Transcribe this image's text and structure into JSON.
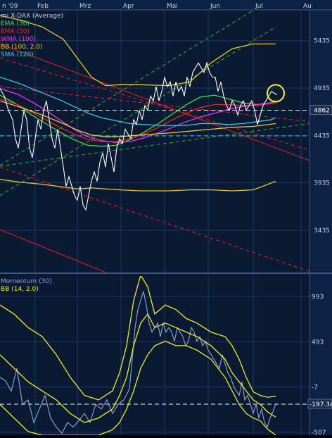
{
  "colors": {
    "background": "#0a1a33",
    "grid": "#1f3866",
    "axis_panel": "#0d2244",
    "text": "#c8d2e6",
    "price": "#ffffff",
    "ema30": "#44dd44",
    "ema50": "#ee2222",
    "wma100": "#ee33ee",
    "bb": "#e6c830",
    "sma120": "#33c8e6",
    "trend_green": "#22bb22",
    "trend_red": "#dd2222",
    "momentum": "#8ea6e0",
    "mom_bb": "#eeee22",
    "ref_line": "#ffffff",
    "circle": "#ffee33"
  },
  "chart_data": [
    {
      "type": "line",
      "title": "mi X-DAX (Average)",
      "x_labels": [
        "n '09",
        "Feb",
        "Mrz",
        "Apr",
        "Mai",
        "Jun",
        "Jul",
        "Au"
      ],
      "y_ticks": [
        5435,
        4935,
        4435,
        3935,
        3435
      ],
      "ylim": [
        3010,
        5760
      ],
      "last_value_label": "4862",
      "reference_level": 4700,
      "series": [
        {
          "name": "EMA (30)",
          "color_key": "ema30",
          "x": [
            0,
            25,
            45,
            65,
            85,
            105,
            125,
            145,
            165,
            185,
            205,
            225,
            245,
            265,
            285,
            305,
            325,
            345,
            365,
            385,
            392
          ],
          "y": [
            4860,
            4760,
            4650,
            4560,
            4470,
            4390,
            4330,
            4320,
            4330,
            4390,
            4470,
            4560,
            4660,
            4760,
            4840,
            4860,
            4820,
            4780,
            4760,
            4780,
            4800
          ]
        },
        {
          "name": "EMA (50)",
          "color_key": "ema50",
          "x": [
            0,
            25,
            45,
            65,
            85,
            105,
            125,
            145,
            165,
            185,
            205,
            225,
            245,
            265,
            285,
            305,
            325,
            345,
            365,
            385,
            392
          ],
          "y": [
            4820,
            4760,
            4680,
            4600,
            4520,
            4450,
            4390,
            4370,
            4370,
            4400,
            4450,
            4520,
            4600,
            4670,
            4730,
            4760,
            4760,
            4750,
            4750,
            4770,
            4780
          ]
        },
        {
          "name": "WMA (100)",
          "color_key": "wma100",
          "x": [
            0,
            25,
            45,
            65,
            85,
            105,
            125,
            145,
            165,
            185,
            205,
            225,
            245,
            265,
            285,
            305,
            325,
            345,
            365,
            385,
            392
          ],
          "y": [
            4930,
            4870,
            4790,
            4700,
            4600,
            4500,
            4420,
            4380,
            4360,
            4370,
            4410,
            4460,
            4520,
            4580,
            4630,
            4670,
            4710,
            4740,
            4760,
            4780,
            4790
          ]
        },
        {
          "name": "BB (100, 2.0)",
          "color_key": "bb",
          "band": true,
          "x": [
            0,
            30,
            60,
            90,
            110,
            130,
            150,
            170,
            200,
            240,
            270,
            300,
            330,
            360,
            392
          ],
          "upper": [
            5700,
            5650,
            5580,
            5450,
            5250,
            5050,
            4960,
            4970,
            4970,
            4960,
            5000,
            5200,
            5350,
            5400,
            5400
          ],
          "middle": [
            4800,
            4730,
            4650,
            4560,
            4490,
            4440,
            4420,
            4420,
            4440,
            4460,
            4480,
            4500,
            4520,
            4530,
            4560
          ],
          "lower": [
            3970,
            3940,
            3920,
            3890,
            3870,
            3880,
            3870,
            3860,
            3850,
            3850,
            3860,
            3860,
            3850,
            3860,
            3950
          ]
        },
        {
          "name": "SMA (120)",
          "color_key": "sma120",
          "x": [
            0,
            25,
            45,
            65,
            85,
            105,
            125,
            145,
            165,
            185,
            205,
            225,
            245,
            265,
            285,
            305,
            325,
            345,
            365,
            385,
            392
          ],
          "y": [
            5050,
            4990,
            4930,
            4870,
            4810,
            4740,
            4670,
            4620,
            4590,
            4560,
            4550,
            4540,
            4540,
            4540,
            4560,
            4560,
            4550,
            4560,
            4580,
            4600,
            4620
          ]
        },
        {
          "name": "X-DAX",
          "color_key": "price",
          "x": [
            0,
            6,
            12,
            18,
            22,
            26,
            30,
            34,
            38,
            42,
            46,
            50,
            54,
            58,
            62,
            66,
            70,
            74,
            78,
            82,
            86,
            90,
            94,
            98,
            102,
            106,
            110,
            114,
            118,
            122,
            126,
            130,
            134,
            138,
            142,
            146,
            150,
            154,
            158,
            162,
            166,
            170,
            174,
            178,
            182,
            186,
            190,
            194,
            198,
            202,
            206,
            210,
            214,
            218,
            222,
            226,
            230,
            234,
            238,
            242,
            246,
            250,
            254,
            258,
            262,
            266,
            270,
            274,
            278,
            282,
            286,
            290,
            294,
            298,
            302,
            306,
            310,
            314,
            318,
            322,
            326,
            330,
            334,
            338,
            342,
            346,
            350,
            354,
            358,
            362,
            366,
            370,
            374,
            378,
            382,
            386,
            390,
            394
          ],
          "y": [
            4930,
            4850,
            4700,
            4600,
            4400,
            4300,
            4500,
            4700,
            4600,
            4300,
            4200,
            4400,
            4600,
            4500,
            4700,
            4800,
            4600,
            4400,
            4300,
            4500,
            4300,
            4100,
            3900,
            4000,
            3900,
            3800,
            3750,
            3900,
            3700,
            3650,
            3800,
            3950,
            4050,
            3950,
            4150,
            4250,
            4100,
            4350,
            4200,
            4050,
            4300,
            4400,
            4350,
            4500,
            4450,
            4400,
            4600,
            4550,
            4700,
            4600,
            4750,
            4700,
            4850,
            4800,
            4950,
            4800,
            4900,
            5050,
            4950,
            5000,
            4850,
            5000,
            4900,
            4950,
            4850,
            5050,
            4950,
            5100,
            5150,
            5200,
            5150,
            5100,
            5200,
            5100,
            5050,
            5050,
            4900,
            5000,
            4850,
            4750,
            4700,
            4800,
            4750,
            4650,
            4750,
            4800,
            4700,
            4750,
            4800,
            4700,
            4550,
            4650,
            4750,
            4800,
            4850,
            4900,
            4880,
            4862
          ]
        }
      ],
      "trend_lines": [
        {
          "color_key": "trend_green",
          "style": "dashed",
          "from": [
            0,
            4120
          ],
          "to": [
            392,
            5900
          ]
        },
        {
          "color_key": "trend_green",
          "style": "dashed",
          "from": [
            0,
            3800
          ],
          "to": [
            392,
            5580
          ]
        },
        {
          "color_key": "trend_green",
          "style": "dashed",
          "from": [
            0,
            4110
          ],
          "to": [
            440,
            4560
          ]
        },
        {
          "color_key": "trend_red",
          "style": "solid",
          "from": [
            0,
            5400
          ],
          "to": [
            440,
            4170
          ]
        },
        {
          "color_key": "trend_red",
          "style": "dashed",
          "from": [
            0,
            5250
          ],
          "to": [
            440,
            4280
          ]
        },
        {
          "color_key": "trend_red",
          "style": "dashed",
          "from": [
            0,
            4950
          ],
          "to": [
            440,
            4580
          ]
        },
        {
          "color_key": "trend_red",
          "style": "dashed",
          "from": [
            0,
            4100
          ],
          "to": [
            440,
            3000
          ]
        },
        {
          "color_key": "trend_red",
          "style": "solid",
          "from": [
            0,
            3440
          ],
          "to": [
            150,
            2990
          ]
        }
      ],
      "cyan_level": 4430,
      "highlight_point": [
        392,
        4880
      ]
    },
    {
      "type": "line",
      "title": "Momentum (30)",
      "subtitle": "BB (14, 2.0)",
      "y_ticks": [
        993,
        493,
        -7,
        -507
      ],
      "ylim": [
        -540,
        1220
      ],
      "last_value_label": "-197.34",
      "reference_level": -197,
      "series": [
        {
          "name": "Momentum (30)",
          "color_key": "momentum",
          "x": [
            0,
            8,
            16,
            24,
            32,
            40,
            48,
            56,
            64,
            72,
            80,
            88,
            96,
            104,
            112,
            120,
            128,
            136,
            144,
            152,
            160,
            168,
            176,
            184,
            188,
            192,
            196,
            200,
            204,
            208,
            212,
            216,
            220,
            224,
            228,
            232,
            236,
            240,
            244,
            248,
            252,
            256,
            260,
            264,
            268,
            272,
            276,
            280,
            284,
            288,
            292,
            296,
            300,
            304,
            308,
            312,
            316,
            320,
            324,
            328,
            332,
            336,
            340,
            344,
            348,
            352,
            356,
            360,
            364,
            368,
            372,
            376,
            380,
            384,
            388,
            392
          ],
          "y": [
            100,
            60,
            -50,
            200,
            -200,
            -150,
            -400,
            -250,
            -100,
            -350,
            -450,
            -520,
            -400,
            -450,
            -380,
            -300,
            -400,
            -200,
            -250,
            -150,
            -300,
            -200,
            -150,
            -30,
            300,
            650,
            850,
            950,
            1050,
            900,
            700,
            600,
            650,
            700,
            550,
            700,
            600,
            650,
            600,
            500,
            650,
            600,
            550,
            450,
            500,
            650,
            600,
            500,
            550,
            450,
            500,
            400,
            350,
            300,
            250,
            200,
            350,
            250,
            150,
            100,
            0,
            -50,
            -100,
            50,
            -150,
            -100,
            -200,
            -300,
            -200,
            -350,
            -250,
            -400,
            -450,
            -350,
            -280,
            -197
          ]
        },
        {
          "name": "BB upper",
          "color_key": "mom_bb",
          "x": [
            0,
            20,
            40,
            60,
            80,
            100,
            120,
            140,
            160,
            170,
            180,
            190,
            200,
            210,
            220,
            235,
            250,
            265,
            280,
            300,
            320,
            330,
            340,
            350,
            360,
            370,
            380,
            392
          ],
          "y": [
            900,
            800,
            650,
            550,
            350,
            100,
            -100,
            -150,
            -50,
            150,
            450,
            950,
            1230,
            1100,
            800,
            900,
            850,
            750,
            700,
            600,
            550,
            450,
            300,
            100,
            -60,
            -100,
            -120,
            -110
          ]
        },
        {
          "name": "BB middle",
          "color_key": "mom_bb",
          "x": [
            0,
            20,
            40,
            60,
            80,
            100,
            120,
            140,
            160,
            170,
            180,
            190,
            200,
            210,
            220,
            235,
            250,
            265,
            280,
            300,
            320,
            330,
            340,
            350,
            360,
            370,
            380,
            392
          ],
          "y": [
            350,
            200,
            50,
            -50,
            -150,
            -300,
            -400,
            -350,
            -250,
            -100,
            100,
            450,
            700,
            800,
            650,
            700,
            650,
            600,
            550,
            450,
            300,
            150,
            50,
            -50,
            -150,
            -200,
            -280,
            -340
          ]
        },
        {
          "name": "BB lower",
          "color_key": "mom_bb",
          "x": [
            0,
            20,
            40,
            60,
            80,
            100,
            120,
            140,
            160,
            170,
            180,
            190,
            200,
            210,
            220,
            235,
            250,
            265,
            280,
            300,
            320,
            330,
            340,
            350,
            360,
            370,
            380,
            392
          ],
          "y": [
            -200,
            -350,
            -500,
            -540,
            -540,
            -540,
            -540,
            -540,
            -480,
            -400,
            -250,
            -50,
            200,
            350,
            450,
            500,
            450,
            450,
            400,
            300,
            100,
            -50,
            -200,
            -300,
            -350,
            -380,
            -470,
            -540
          ]
        }
      ]
    }
  ],
  "legend": {
    "items": [
      {
        "label": "mi X-DAX (Average)",
        "color_key": "text"
      },
      {
        "label": "EMA (30)",
        "color_key": "ema30"
      },
      {
        "label": "EMA (50)",
        "color_key": "ema50"
      },
      {
        "label": "WMA (100)",
        "color_key": "wma100"
      },
      {
        "label": "BB (100, 2.0)",
        "color_key": "bb"
      },
      {
        "label": "SMA (120)",
        "color_key": "sma120"
      }
    ]
  },
  "momentum_legend": {
    "items": [
      {
        "label": "Momentum (30)",
        "color_key": "momentum"
      },
      {
        "label": "BB (14, 2.0)",
        "color_key": "mom_bb"
      }
    ]
  }
}
